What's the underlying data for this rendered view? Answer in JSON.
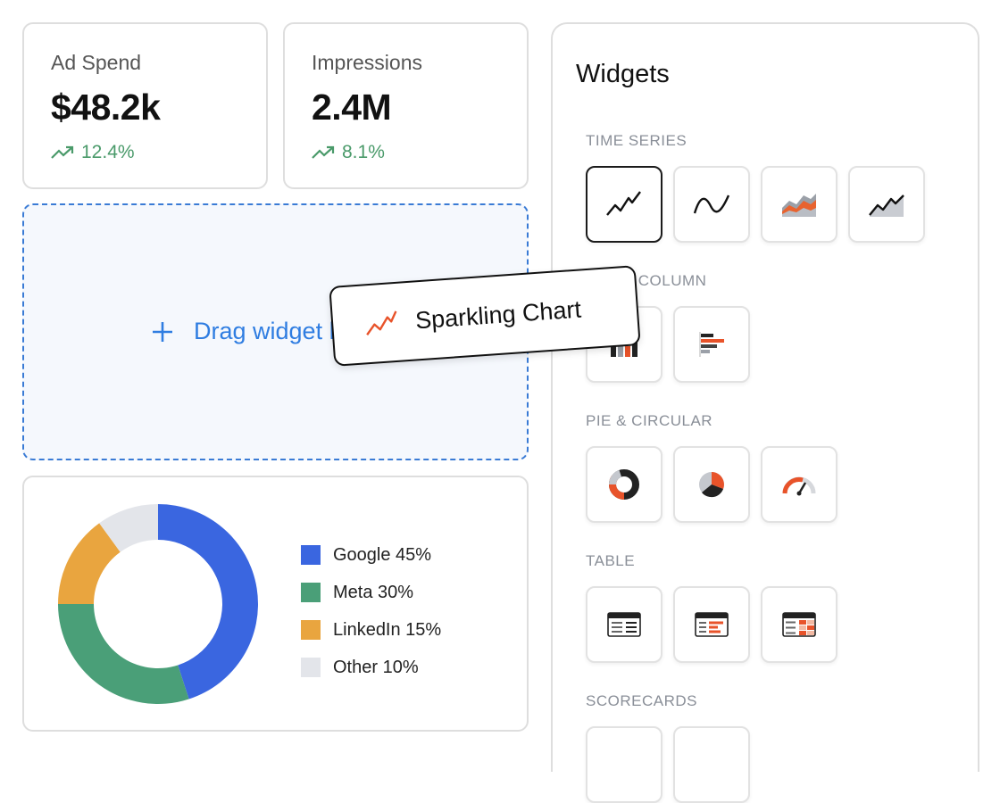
{
  "kpis": [
    {
      "label": "Ad Spend",
      "value": "$48.2k",
      "change": "12.4%"
    },
    {
      "label": "Impressions",
      "value": "2.4M",
      "change": "8.1%"
    }
  ],
  "dropzone": {
    "label": "Drag widget here"
  },
  "dragging": {
    "label": "Sparkling Chart",
    "icon": "sparkline-icon"
  },
  "colors": {
    "accent": "#2f7de1",
    "positive": "#4a9a6a",
    "orange": "#e8532a"
  },
  "channel_split": {
    "legend": [
      "Google 45%",
      "Meta 30%",
      "LinkedIn 15%",
      "Other 10%"
    ],
    "values": [
      45,
      30,
      15,
      10
    ],
    "colors": [
      "#3a66e0",
      "#4a9f78",
      "#e9a53f",
      "#e3e5ea"
    ]
  },
  "widgets": {
    "title": "Widgets",
    "sections": [
      {
        "label": "TIME SERIES",
        "tiles": [
          "line-chart-icon",
          "smooth-line-icon",
          "stacked-area-icon",
          "area-chart-icon"
        ]
      },
      {
        "label": "BAR & COLUMN",
        "tiles": [
          "column-chart-icon",
          "bar-chart-icon"
        ]
      },
      {
        "label": "PIE & CIRCULAR",
        "tiles": [
          "donut-chart-icon",
          "pie-chart-icon",
          "gauge-icon"
        ]
      },
      {
        "label": "TABLE",
        "tiles": [
          "table-icon",
          "table-bars-icon",
          "table-heatmap-icon"
        ]
      },
      {
        "label": "SCORECARDS",
        "tiles": [
          "scorecard-icon",
          "scorecard-icon"
        ]
      }
    ]
  }
}
